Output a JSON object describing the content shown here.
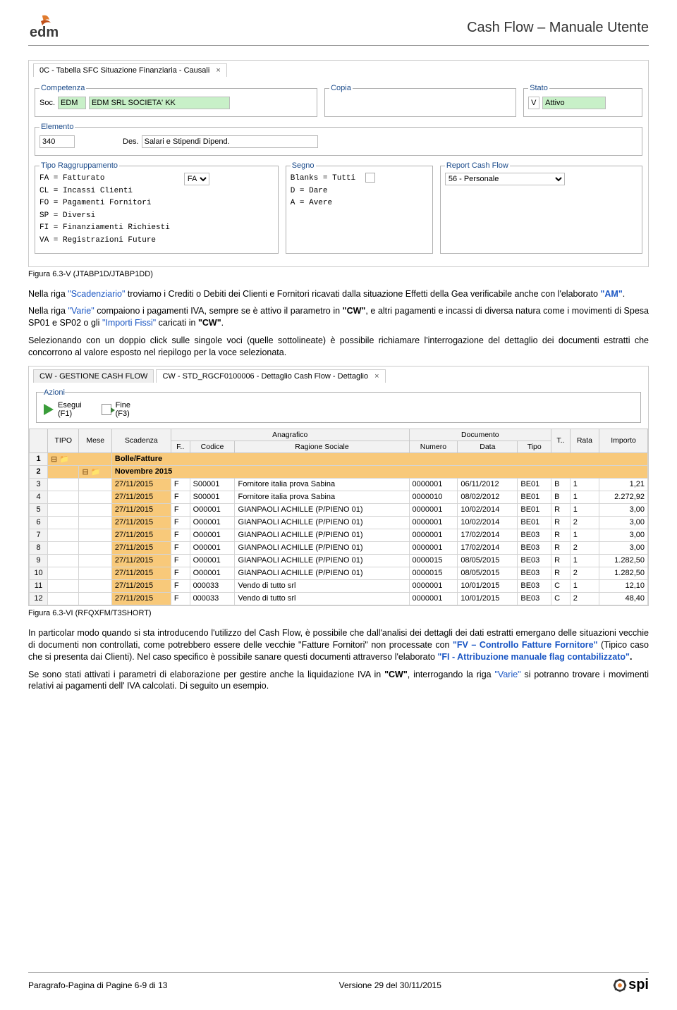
{
  "header": {
    "title": "Cash Flow – Manuale Utente"
  },
  "fig1": {
    "tab": "0C - Tabella SFC Situazione Finanziaria - Causali",
    "competenza_legend": "Competenza",
    "soc_label": "Soc.",
    "soc_code": "EDM",
    "soc_desc": "EDM SRL SOCIETA' KK",
    "copia_legend": "Copia",
    "stato_legend": "Stato",
    "stato_flag": "V",
    "stato_value": "Attivo",
    "elemento_legend": "Elemento",
    "elemento_code": "340",
    "elemento_des_label": "Des.",
    "elemento_des": "Salari e Stipendi Dipend.",
    "tipo_legend": "Tipo Raggruppamento",
    "tipo_value": "FA",
    "tipo_items": [
      "FA = Fatturato",
      "CL = Incassi Clienti",
      "FO = Pagamenti Fornitori",
      "SP = Diversi",
      "FI = Finanziamenti Richiesti",
      "VA = Registrazioni Future"
    ],
    "segno_legend": "Segno",
    "segno_items": [
      "Blanks = Tutti",
      "D = Dare",
      "A = Avere"
    ],
    "report_legend": "Report Cash Flow",
    "report_value": "56 - Personale"
  },
  "cap1": "Figura 6.3-V  (JTABP1D/JTABP1DD)",
  "para1": {
    "pre": "Nella riga ",
    "scad": "\"Scadenziario\"",
    "mid": " troviamo i Crediti o Debiti dei Clienti e Fornitori ricavati dalla situazione Effetti della Gea  verificabile anche con l'elaborato ",
    "am": "\"AM\"",
    "end": "."
  },
  "para2": {
    "pre": "Nella riga ",
    "varie": "\"Varie\"",
    "mid1": " compaiono i pagamenti IVA, sempre se è attivo il parametro in ",
    "cw1": "\"CW\"",
    "mid2": ", e altri pagamenti e incassi di diversa natura  come i movimenti di Spesa SP01 e SP02 o gli ",
    "imp": "\"Importi Fissi\"",
    "mid3": " caricati in ",
    "cw2": "\"CW\"",
    "end": "."
  },
  "para3": "Selezionando con un doppio click sulle singole voci (quelle sottolineate) è possibile richiamare l'interrogazione del dettaglio dei documenti estratti che concorrono al valore esposto nel riepilogo per la voce selezionata.",
  "fig2": {
    "tab1": "CW - GESTIONE CASH FLOW",
    "tab2": "CW - STD_RGCF0100006 - Dettaglio Cash Flow - Dettaglio",
    "azioni_legend": "Azioni",
    "esegui": "Esegui\n(F1)",
    "fine": "Fine\n(F3)",
    "headers_top": {
      "anag": "Anagrafico",
      "doc": "Documento"
    },
    "headers": [
      "",
      "TIPO",
      "Mese",
      "Scadenza",
      "F..",
      "Codice",
      "Ragione Sociale",
      "Numero",
      "Data",
      "Tipo",
      "T..",
      "Rata",
      "Importo"
    ],
    "group1": "Bolle/Fatture",
    "group2": "Novembre 2015",
    "rows": [
      [
        "3",
        "27/11/2015",
        "F",
        "S00001",
        "Fornitore italia prova Sabina",
        "0000001",
        "06/11/2012",
        "BE01",
        "B",
        "1",
        "1,21"
      ],
      [
        "4",
        "27/11/2015",
        "F",
        "S00001",
        "Fornitore italia prova Sabina",
        "0000010",
        "08/02/2012",
        "BE01",
        "B",
        "1",
        "2.272,92"
      ],
      [
        "5",
        "27/11/2015",
        "F",
        "O00001",
        "GIANPAOLI ACHILLE (P/PIENO 01)",
        "0000001",
        "10/02/2014",
        "BE01",
        "R",
        "1",
        "3,00"
      ],
      [
        "6",
        "27/11/2015",
        "F",
        "O00001",
        "GIANPAOLI ACHILLE (P/PIENO 01)",
        "0000001",
        "10/02/2014",
        "BE01",
        "R",
        "2",
        "3,00"
      ],
      [
        "7",
        "27/11/2015",
        "F",
        "O00001",
        "GIANPAOLI ACHILLE (P/PIENO 01)",
        "0000001",
        "17/02/2014",
        "BE03",
        "R",
        "1",
        "3,00"
      ],
      [
        "8",
        "27/11/2015",
        "F",
        "O00001",
        "GIANPAOLI ACHILLE (P/PIENO 01)",
        "0000001",
        "17/02/2014",
        "BE03",
        "R",
        "2",
        "3,00"
      ],
      [
        "9",
        "27/11/2015",
        "F",
        "O00001",
        "GIANPAOLI ACHILLE (P/PIENO 01)",
        "0000015",
        "08/05/2015",
        "BE03",
        "R",
        "1",
        "1.282,50"
      ],
      [
        "10",
        "27/11/2015",
        "F",
        "O00001",
        "GIANPAOLI ACHILLE (P/PIENO 01)",
        "0000015",
        "08/05/2015",
        "BE03",
        "R",
        "2",
        "1.282,50"
      ],
      [
        "11",
        "27/11/2015",
        "F",
        "000033",
        "Vendo di tutto srl",
        "0000001",
        "10/01/2015",
        "BE03",
        "C",
        "1",
        "12,10"
      ],
      [
        "12",
        "27/11/2015",
        "F",
        "000033",
        "Vendo di tutto srl",
        "0000001",
        "10/01/2015",
        "BE03",
        "C",
        "2",
        "48,40"
      ]
    ]
  },
  "cap2": "Figura 6.3-VI  (RFQXFM/T3SHORT)",
  "para4": {
    "t1": "In particolar modo quando si sta introducendo l'utilizzo del Cash Flow, è possibile che dall'analisi dei dettagli dei dati estratti emergano delle situazioni vecchie di documenti non controllati, come potrebbero essere delle vecchie \"Fatture Fornitori\" non processate con ",
    "fv": "\"FV – Controllo Fatture Fornitore\"",
    "t2": " (Tipico caso che si presenta dai Clienti).  Nel caso specifico è possibile sanare questi documenti attraverso  l'elaborato ",
    "fi": "\"FI - Attribuzione manuale flag contabilizzato\"",
    "t3": "."
  },
  "para5": {
    "t1": "Se sono stati attivati i parametri di elaborazione per gestire anche la liquidazione IVA in ",
    "cw": "\"CW\"",
    "t2": ", interrogando la riga ",
    "varie": "\"Varie\"",
    "t3": " si potranno trovare  i movimenti  relativi ai pagamenti dell' IVA calcolati.  Di seguito un esempio."
  },
  "footer": {
    "left": "Paragrafo-Pagina di Pagine 6-9 di 13",
    "center": "Versione 29 del 30/11/2015",
    "spi": "spi"
  }
}
